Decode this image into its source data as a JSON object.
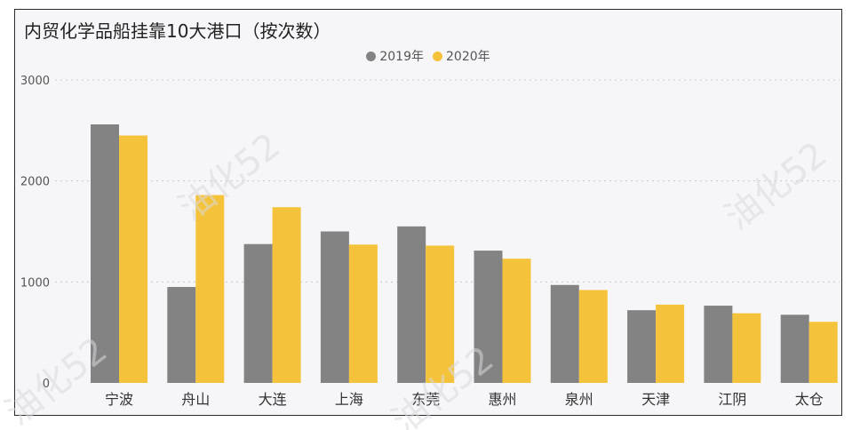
{
  "chart_data": {
    "type": "bar",
    "title": "内贸化学品船挂靠10大港口（按次数）",
    "categories": [
      "宁波",
      "舟山",
      "大连",
      "上海",
      "东莞",
      "惠州",
      "泉州",
      "天津",
      "江阴",
      "太仓"
    ],
    "series": [
      {
        "name": "2019年",
        "color": "#838383",
        "values": [
          2560,
          950,
          1375,
          1500,
          1550,
          1310,
          970,
          720,
          765,
          675
        ]
      },
      {
        "name": "2020年",
        "color": "#f5c33b",
        "values": [
          2450,
          1860,
          1740,
          1370,
          1360,
          1230,
          920,
          775,
          690,
          605
        ]
      }
    ],
    "ylim": [
      0,
      3000
    ],
    "yticks": [
      0,
      1000,
      2000,
      3000
    ],
    "grid": true,
    "legend_position": "top-center",
    "watermarks": [
      "油化52"
    ]
  }
}
